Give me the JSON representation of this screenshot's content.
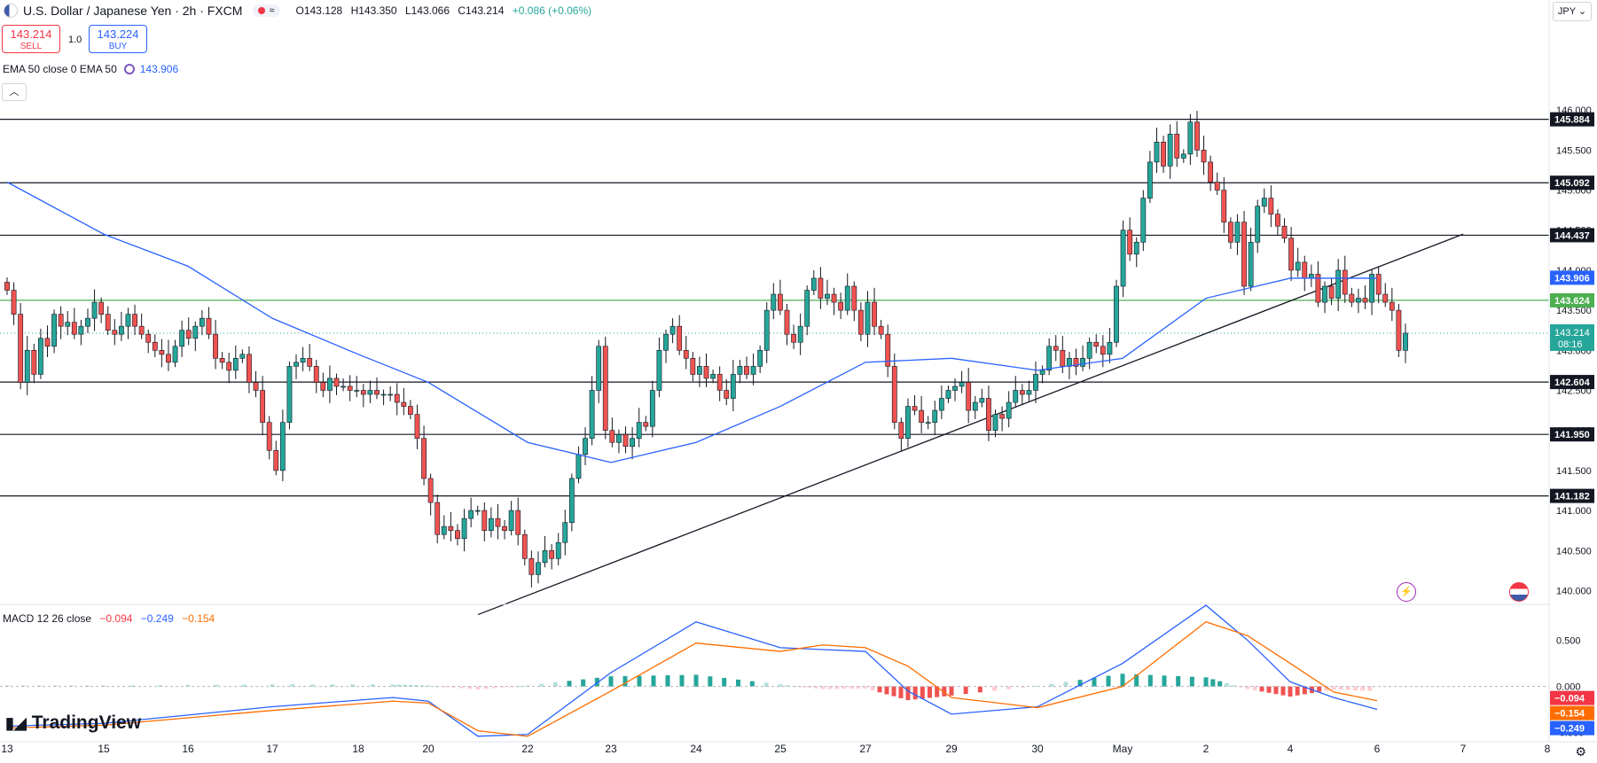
{
  "header": {
    "symbol_title": "U.S. Dollar / Japanese Yen · 2h · FXCM",
    "ohlc": {
      "open": "O143.128",
      "high": "H143.350",
      "low": "L143.066",
      "close": "C143.214",
      "change": "+0.086 (+0.06%)"
    }
  },
  "trade": {
    "sell_price": "143.214",
    "sell_label": "SELL",
    "buy_price": "143.224",
    "buy_label": "BUY",
    "size": "1.0"
  },
  "currency": "JPY",
  "indicators": {
    "ema_label": "EMA 50 close 0 EMA 50",
    "ema_value": "143.906",
    "macd_label": "MACD 12 26 close",
    "macd_hist": "−0.094",
    "macd_line": "−0.249",
    "macd_signal": "−0.154"
  },
  "logo": "TradingView",
  "colors": {
    "up": "#26a69a",
    "down": "#ef5350",
    "ema": "#2962ff",
    "signal": "#ff6d00",
    "support_line": "#131722",
    "green_level": "#4caf50"
  },
  "chart_data": {
    "type": "candlestick",
    "ylim": [
      139.85,
      146.4
    ],
    "y_ticks": [
      "146.000",
      "145.500",
      "145.000",
      "144.500",
      "144.000",
      "143.500",
      "143.000",
      "142.500",
      "142.000",
      "141.500",
      "141.000",
      "140.500",
      "140.000"
    ],
    "x_ticks": [
      "13",
      "15",
      "16",
      "17",
      "18",
      "20",
      "22",
      "23",
      "24",
      "25",
      "27",
      "29",
      "30",
      "May",
      "2",
      "4",
      "6",
      "7",
      "8"
    ],
    "horizontal_levels": [
      {
        "value": 145.884,
        "label": "145.884",
        "color": "#131722"
      },
      {
        "value": 145.092,
        "label": "145.092",
        "color": "#131722"
      },
      {
        "value": 144.437,
        "label": "144.437",
        "color": "#131722"
      },
      {
        "value": 143.624,
        "label": "143.624",
        "color": "#4caf50"
      },
      {
        "value": 142.604,
        "label": "142.604",
        "color": "#131722"
      },
      {
        "value": 141.95,
        "label": "141.950",
        "color": "#131722"
      },
      {
        "value": 141.182,
        "label": "141.182",
        "color": "#131722"
      }
    ],
    "price_labels": [
      {
        "value": 143.906,
        "label": "143.906",
        "color": "#2962ff"
      },
      {
        "value": 143.214,
        "label": "143.214",
        "sub": "08:16",
        "color": "#26a69a"
      }
    ],
    "trendline": {
      "from": [
        "Apr 21",
        139.7
      ],
      "to": [
        "May 7",
        144.45
      ]
    },
    "closes": [
      143.75,
      143.45,
      142.6,
      143.0,
      142.7,
      143.15,
      143.05,
      143.45,
      143.3,
      143.35,
      143.2,
      143.3,
      143.4,
      143.6,
      143.45,
      143.25,
      143.2,
      143.3,
      143.45,
      143.3,
      143.2,
      143.1,
      143.0,
      142.95,
      142.85,
      143.05,
      143.25,
      143.15,
      143.3,
      143.4,
      143.2,
      142.9,
      142.85,
      142.75,
      142.9,
      142.95,
      142.6,
      142.5,
      142.1,
      141.75,
      141.5,
      142.1,
      142.8,
      142.85,
      142.9,
      142.8,
      142.6,
      142.5,
      142.65,
      142.55,
      142.55,
      142.5,
      142.5,
      142.45,
      142.5,
      142.45,
      142.45,
      142.45,
      142.35,
      142.3,
      142.2,
      141.9,
      141.4,
      141.1,
      140.7,
      140.8,
      140.75,
      140.65,
      140.9,
      141.0,
      141.0,
      140.75,
      140.9,
      140.8,
      140.75,
      141.0,
      140.7,
      140.4,
      140.2,
      140.35,
      140.5,
      140.4,
      140.6,
      140.85,
      141.4,
      141.7,
      141.9,
      142.5,
      143.05,
      142.0,
      141.85,
      141.95,
      141.8,
      141.9,
      142.1,
      142.05,
      142.5,
      143.0,
      143.2,
      143.3,
      143.0,
      142.9,
      142.7,
      142.8,
      142.65,
      142.7,
      142.5,
      142.4,
      142.7,
      142.8,
      142.7,
      142.8,
      143.0,
      143.5,
      143.7,
      143.5,
      143.2,
      143.1,
      143.3,
      143.75,
      143.9,
      143.65,
      143.7,
      143.6,
      143.5,
      143.8,
      143.5,
      143.2,
      143.6,
      143.3,
      143.2,
      142.8,
      142.1,
      141.9,
      142.3,
      142.25,
      142.1,
      142.1,
      142.25,
      142.4,
      142.5,
      142.55,
      142.6,
      142.25,
      142.35,
      142.4,
      142.0,
      142.2,
      142.15,
      142.35,
      142.5,
      142.45,
      142.5,
      142.7,
      142.75,
      143.05,
      143.0,
      142.8,
      142.9,
      142.8,
      142.9,
      143.1,
      143.05,
      142.95,
      143.1,
      143.8,
      144.5,
      144.2,
      144.35,
      144.9,
      145.35,
      145.6,
      145.3,
      145.7,
      145.4,
      145.45,
      145.85,
      145.5,
      145.35,
      145.1,
      145.0,
      144.6,
      144.35,
      144.6,
      143.8,
      144.35,
      144.8,
      144.9,
      144.7,
      144.55,
      144.4,
      144.0,
      144.1,
      143.9,
      143.95,
      143.6,
      143.8,
      143.65,
      144.0,
      143.7,
      143.6,
      143.65,
      143.6,
      143.95,
      143.7,
      143.6,
      143.5,
      143.0,
      143.214
    ],
    "ema50": [
      [
        "Apr 13",
        145.1
      ],
      [
        "Apr 15",
        144.45
      ],
      [
        "Apr 16",
        144.05
      ],
      [
        "Apr 17",
        143.4
      ],
      [
        "Apr 18",
        142.95
      ],
      [
        "Apr 20",
        142.6
      ],
      [
        "Apr 22",
        141.85
      ],
      [
        "Apr 23",
        141.6
      ],
      [
        "Apr 24",
        141.85
      ],
      [
        "Apr 25",
        142.3
      ],
      [
        "Apr 27",
        142.85
      ],
      [
        "Apr 29",
        142.9
      ],
      [
        "Apr 30",
        142.75
      ],
      [
        "May 1",
        142.9
      ],
      [
        "May 2",
        143.65
      ],
      [
        "May 4",
        143.9
      ],
      [
        "May 6",
        143.9
      ]
    ],
    "macd": {
      "ylim": [
        -0.58,
        0.88
      ],
      "y_ticks": [
        "0.500",
        "0.000",
        "-0.500"
      ],
      "macd_line": [
        [
          "Apr 13",
          -0.43
        ],
        [
          "Apr 15",
          -0.4
        ],
        [
          "Apr 17",
          -0.22
        ],
        [
          "Apr 19",
          -0.12
        ],
        [
          "Apr 20",
          -0.16
        ],
        [
          "Apr 21",
          -0.54
        ],
        [
          "Apr 22",
          -0.52
        ],
        [
          "Apr 23",
          0.15
        ],
        [
          "Apr 24",
          0.7
        ],
        [
          "Apr 25",
          0.42
        ],
        [
          "Apr 26",
          0.4
        ],
        [
          "Apr 27",
          0.38
        ],
        [
          "Apr 28",
          -0.05
        ],
        [
          "Apr 29",
          -0.3
        ],
        [
          "Apr 30",
          -0.22
        ],
        [
          "May 1",
          0.25
        ],
        [
          "May 2",
          0.88
        ],
        [
          "May 3",
          0.5
        ],
        [
          "May 4",
          0.05
        ],
        [
          "May 5",
          -0.12
        ],
        [
          "May 6",
          -0.249
        ]
      ],
      "signal_line": [
        [
          "Apr 13",
          -0.45
        ],
        [
          "Apr 15",
          -0.42
        ],
        [
          "Apr 17",
          -0.26
        ],
        [
          "Apr 19",
          -0.16
        ],
        [
          "Apr 20",
          -0.18
        ],
        [
          "Apr 21",
          -0.48
        ],
        [
          "Apr 22",
          -0.54
        ],
        [
          "Apr 23",
          -0.05
        ],
        [
          "Apr 24",
          0.47
        ],
        [
          "Apr 25",
          0.38
        ],
        [
          "Apr 26",
          0.45
        ],
        [
          "Apr 27",
          0.42
        ],
        [
          "Apr 28",
          0.22
        ],
        [
          "Apr 29",
          -0.12
        ],
        [
          "Apr 30",
          -0.23
        ],
        [
          "May 1",
          0.0
        ],
        [
          "May 2",
          0.7
        ],
        [
          "May 3",
          0.55
        ],
        [
          "May 4",
          0.25
        ],
        [
          "May 5",
          -0.06
        ],
        [
          "May 6",
          -0.154
        ]
      ],
      "zero_line": 0.0
    }
  }
}
